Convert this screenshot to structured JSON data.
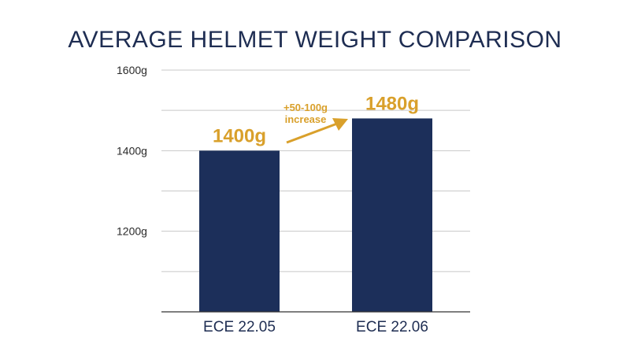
{
  "chart_data": {
    "type": "bar",
    "title": "AVERAGE HELMET WEIGHT COMPARISON",
    "categories": [
      "ECE 22.05",
      "ECE 22.06"
    ],
    "values": [
      1400,
      1480
    ],
    "value_labels": [
      "1400g",
      "1480g"
    ],
    "ylim": [
      1000,
      1600
    ],
    "yticks": [
      1200,
      1400,
      1600
    ],
    "ytick_labels": [
      "1200g",
      "1400g",
      "1600g"
    ],
    "grid": true,
    "annotation": {
      "line1": "+50-100g",
      "line2": "increase"
    },
    "colors": {
      "bar": "#1c2f5a",
      "accent": "#d9a02b",
      "grid": "#c8c8c8",
      "axis": "#333333"
    }
  }
}
